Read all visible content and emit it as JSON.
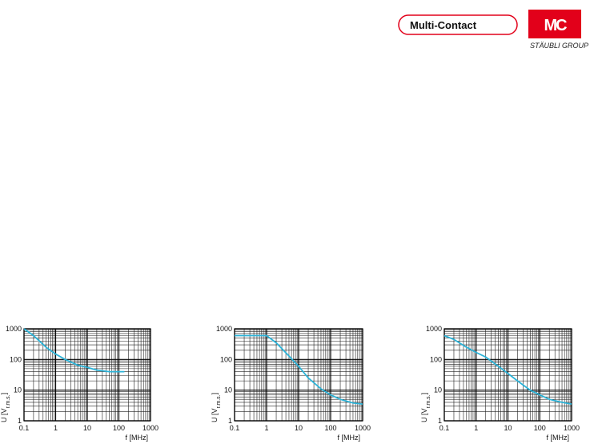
{
  "header": {
    "brand": "Multi-Contact",
    "logo": "MC",
    "group": "STÄUBLI GROUP"
  },
  "chart_data": [
    {
      "type": "line",
      "log_x": true,
      "log_y": true,
      "grid": true,
      "minor_grid": true,
      "xlabel": "f [MHz]",
      "ylabel": [
        "U [V",
        "r.m.s.",
        "]"
      ],
      "xlim": [
        0.1,
        1000
      ],
      "ylim": [
        1,
        1000
      ],
      "xticks": [
        0.1,
        1,
        10,
        100,
        1000
      ],
      "yticks": [
        1,
        10,
        100,
        1000
      ],
      "series": [
        {
          "color": "#2bb3d8",
          "x": [
            0.1,
            0.2,
            0.5,
            1,
            2,
            5,
            10,
            20,
            50,
            150
          ],
          "values": [
            1000,
            600,
            250,
            150,
            100,
            65,
            55,
            45,
            40,
            40
          ]
        }
      ]
    },
    {
      "type": "line",
      "log_x": true,
      "log_y": true,
      "grid": true,
      "minor_grid": true,
      "xlabel": "f [MHz]",
      "ylabel": [
        "U [V",
        "r.m.s.",
        "]"
      ],
      "xlim": [
        0.1,
        1000
      ],
      "ylim": [
        1,
        1000
      ],
      "xticks": [
        0.1,
        1,
        10,
        100,
        1000
      ],
      "yticks": [
        1,
        10,
        100,
        1000
      ],
      "series": [
        {
          "color": "#2bb3d8",
          "x": [
            0.1,
            1,
            2,
            5,
            10,
            20,
            50,
            100,
            200,
            500,
            1000
          ],
          "values": [
            600,
            600,
            350,
            130,
            60,
            25,
            11,
            7,
            5,
            3.8,
            3.5
          ]
        }
      ]
    },
    {
      "type": "line",
      "log_x": true,
      "log_y": true,
      "grid": true,
      "minor_grid": true,
      "xlabel": "f [MHz]",
      "ylabel": [
        "U [V",
        "r.m.s.",
        "]"
      ],
      "xlim": [
        0.1,
        1000
      ],
      "ylim": [
        1,
        1000
      ],
      "xticks": [
        0.1,
        1,
        10,
        100,
        1000
      ],
      "yticks": [
        1,
        10,
        100,
        1000
      ],
      "series": [
        {
          "color": "#2bb3d8",
          "x": [
            0.1,
            0.2,
            0.5,
            1,
            2,
            5,
            10,
            20,
            50,
            100,
            200,
            500,
            1000
          ],
          "values": [
            600,
            450,
            250,
            170,
            120,
            60,
            35,
            20,
            10,
            7,
            5,
            4,
            3.5
          ]
        }
      ]
    }
  ]
}
